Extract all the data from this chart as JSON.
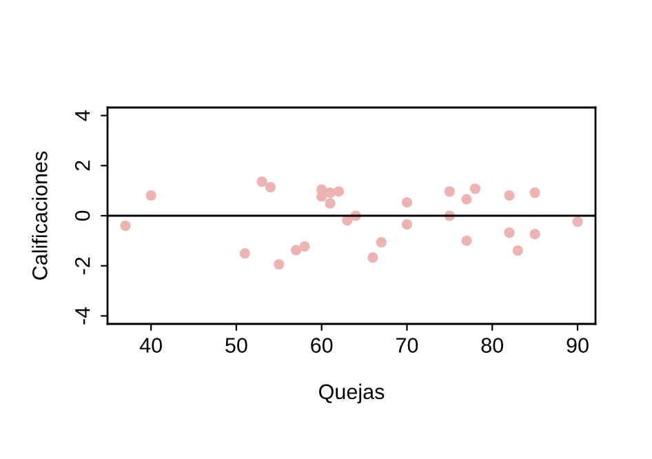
{
  "chart_data": {
    "type": "scatter",
    "xlabel": "Quejas",
    "ylabel": "Calificaciones",
    "marker": "circle",
    "grid": false,
    "x": [
      37,
      40,
      51,
      53,
      54,
      55,
      57,
      58,
      60,
      60,
      61,
      61,
      62,
      63,
      64,
      66,
      67,
      70,
      70,
      75,
      75,
      77,
      77,
      78,
      82,
      82,
      83,
      85,
      85,
      90
    ],
    "series": [
      {
        "color": "#eeb4b4",
        "values": [
          -0.4,
          0.81,
          -1.5,
          1.36,
          1.14,
          -1.94,
          -1.37,
          -1.23,
          1.04,
          0.77,
          0.92,
          0.49,
          0.97,
          -0.18,
          0,
          -1.67,
          -1.06,
          0.53,
          -0.35,
          0.97,
          0,
          0.66,
          -1.0,
          1.08,
          0.81,
          -0.68,
          -1.39,
          0.92,
          -0.73,
          -0.24
        ]
      }
    ],
    "xlim": [
      34.9,
      92.1
    ],
    "ylim": [
      -4.32,
      4.32
    ],
    "xticks": [
      40,
      50,
      60,
      70,
      80,
      90
    ],
    "yticks": [
      -4,
      -2,
      0,
      2,
      4
    ],
    "ref_lines": [
      {
        "axis": "y",
        "value": 0,
        "color": "#000000"
      }
    ]
  }
}
